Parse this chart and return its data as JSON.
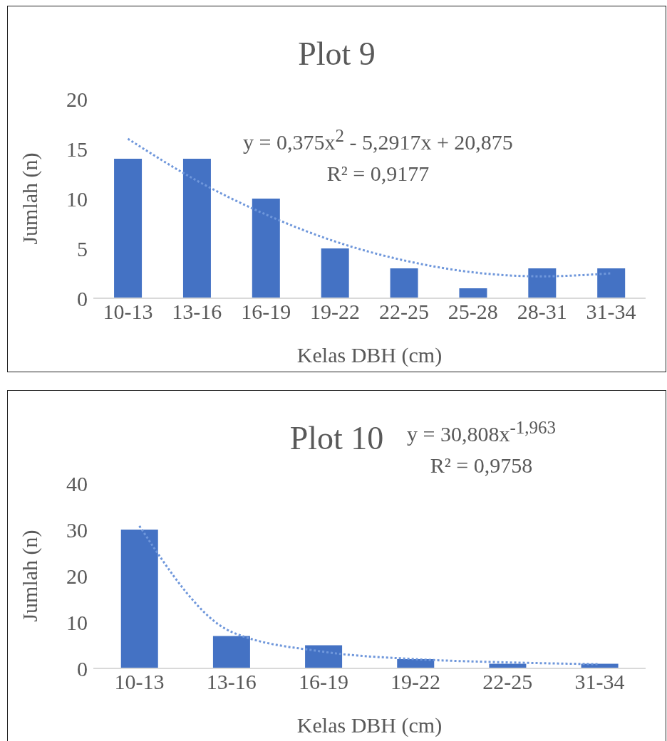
{
  "chart_data": [
    {
      "type": "bar",
      "title": "Plot 9",
      "xlabel": "Kelas DBH (cm)",
      "ylabel": "Jumlah (n)",
      "categories": [
        "10-13",
        "13-16",
        "16-19",
        "19-22",
        "22-25",
        "25-28",
        "28-31",
        "31-34"
      ],
      "series": [
        {
          "color": "#4472c4",
          "values": [
            14,
            14,
            10,
            5,
            3,
            1,
            3,
            3
          ]
        },
        {
          "type": "line",
          "color": "#6f97db",
          "line_style": "dotted",
          "marker": "none",
          "values": [
            16.0,
            11.8,
            8.4,
            5.7,
            3.8,
            2.6,
            2.2,
            2.5
          ]
        }
      ],
      "ylim": [
        0,
        20
      ],
      "yticks": [
        0,
        5,
        10,
        15,
        20
      ],
      "grid": false,
      "legend": false,
      "annotations": [
        "y = 0,375x$^{2}$ - 5,2917x + 20,875",
        "R² = 0,9177"
      ]
    },
    {
      "type": "bar",
      "title": "Plot 10",
      "xlabel": "Kelas DBH (cm)",
      "ylabel": "Jumlah (n)",
      "categories": [
        "10-13",
        "13-16",
        "16-19",
        "19-22",
        "22-25",
        "31-34"
      ],
      "series": [
        {
          "color": "#4472c4",
          "values": [
            30,
            7,
            5,
            2,
            1,
            1
          ]
        },
        {
          "type": "line",
          "color": "#6f97db",
          "line_style": "dotted",
          "marker": "none",
          "values": [
            30.8,
            7.9,
            3.6,
            2.0,
            1.3,
            0.9
          ]
        }
      ],
      "ylim": [
        0,
        40
      ],
      "yticks": [
        0,
        10,
        20,
        30,
        40
      ],
      "grid": false,
      "legend": false,
      "annotations": [
        "y = 30,808x$^{-1,963}$",
        "R² = 0,9758"
      ]
    }
  ]
}
